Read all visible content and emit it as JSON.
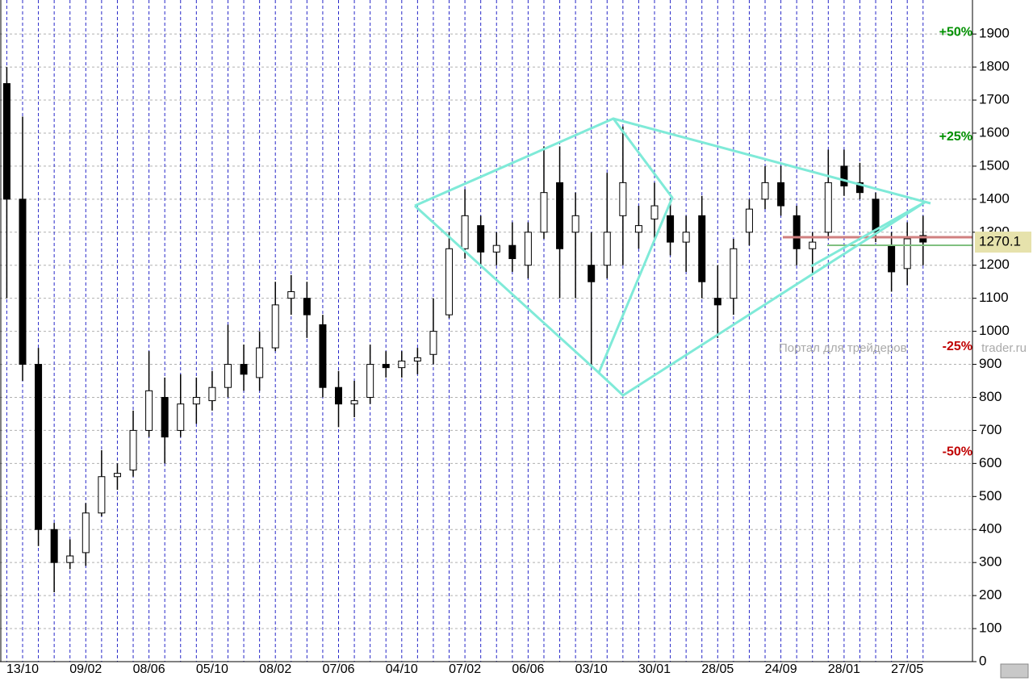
{
  "chart_data": {
    "type": "candlestick",
    "categories": [
      null,
      "13/10",
      null,
      null,
      null,
      "09/02",
      null,
      null,
      null,
      "08/06",
      null,
      null,
      null,
      "05/10",
      null,
      null,
      null,
      "08/02",
      null,
      null,
      null,
      "07/06",
      null,
      null,
      null,
      "04/10",
      null,
      null,
      null,
      "07/02",
      null,
      null,
      null,
      "06/06",
      null,
      null,
      null,
      "03/10",
      null,
      null,
      null,
      "30/01",
      null,
      null,
      null,
      "28/05",
      null,
      null,
      null,
      "24/09",
      null,
      null,
      null,
      "28/01",
      null,
      null,
      null,
      "27/05",
      null
    ],
    "open": [
      1750,
      1400,
      900,
      400,
      300,
      330,
      450,
      560,
      580,
      700,
      800,
      700,
      780,
      790,
      830,
      900,
      860,
      950,
      1100,
      1100,
      1020,
      830,
      780,
      800,
      900,
      890,
      910,
      930,
      1050,
      1250,
      1320,
      1240,
      1260,
      1200,
      1300,
      1450,
      1300,
      1200,
      1200,
      1350,
      1300,
      1340,
      1350,
      1270,
      1350,
      1100,
      1100,
      1300,
      1400,
      1450,
      1350,
      1250,
      1300,
      1500,
      1450,
      1400,
      1260,
      1190,
      1290
    ],
    "high": [
      1800,
      1650,
      950,
      420,
      370,
      480,
      640,
      600,
      760,
      940,
      860,
      870,
      860,
      880,
      1020,
      960,
      1000,
      1150,
      1170,
      1150,
      1050,
      880,
      850,
      960,
      940,
      940,
      950,
      1100,
      1300,
      1430,
      1350,
      1300,
      1330,
      1330,
      1560,
      1560,
      1420,
      1300,
      1480,
      1620,
      1380,
      1450,
      1400,
      1350,
      1410,
      1200,
      1280,
      1400,
      1500,
      1500,
      1380,
      1300,
      1550,
      1550,
      1510,
      1420,
      1300,
      1330,
      1350
    ],
    "low": [
      1100,
      850,
      350,
      210,
      280,
      290,
      440,
      520,
      560,
      680,
      600,
      680,
      720,
      760,
      800,
      820,
      820,
      940,
      1050,
      980,
      800,
      710,
      740,
      780,
      860,
      860,
      870,
      900,
      1040,
      1220,
      1200,
      1200,
      1180,
      1160,
      1280,
      1100,
      1100,
      900,
      1160,
      1200,
      1250,
      1280,
      1230,
      1180,
      1100,
      980,
      1050,
      1260,
      1370,
      1350,
      1200,
      1170,
      1280,
      1410,
      1400,
      1270,
      1120,
      1140,
      1200
    ],
    "close": [
      1400,
      900,
      400,
      300,
      320,
      450,
      560,
      570,
      700,
      820,
      680,
      780,
      800,
      830,
      900,
      870,
      950,
      1080,
      1120,
      1050,
      830,
      780,
      790,
      900,
      890,
      910,
      920,
      1000,
      1250,
      1350,
      1240,
      1260,
      1220,
      1300,
      1420,
      1250,
      1350,
      1150,
      1300,
      1450,
      1320,
      1380,
      1270,
      1300,
      1150,
      1080,
      1250,
      1370,
      1450,
      1380,
      1250,
      1270,
      1450,
      1440,
      1420,
      1300,
      1180,
      1280,
      1270.1
    ],
    "ylim": [
      0,
      2003
    ],
    "yticks": [
      0,
      100,
      200,
      300,
      400,
      500,
      600,
      700,
      800,
      900,
      1000,
      1100,
      1200,
      1300,
      1400,
      1500,
      1600,
      1700,
      1800,
      1900
    ],
    "levels": [
      {
        "value": 1905,
        "label": "+50%",
        "color": "#009000"
      },
      {
        "value": 1588,
        "label": "+25%",
        "color": "#009000"
      },
      {
        "value": 953,
        "label": "-25%",
        "color": "#c00000"
      },
      {
        "value": 635,
        "label": "-50%",
        "color": "#c00000"
      }
    ],
    "last": 1270.1,
    "watermark": [
      "Портал для трейдеров",
      "trader.ru"
    ],
    "grid": true
  }
}
